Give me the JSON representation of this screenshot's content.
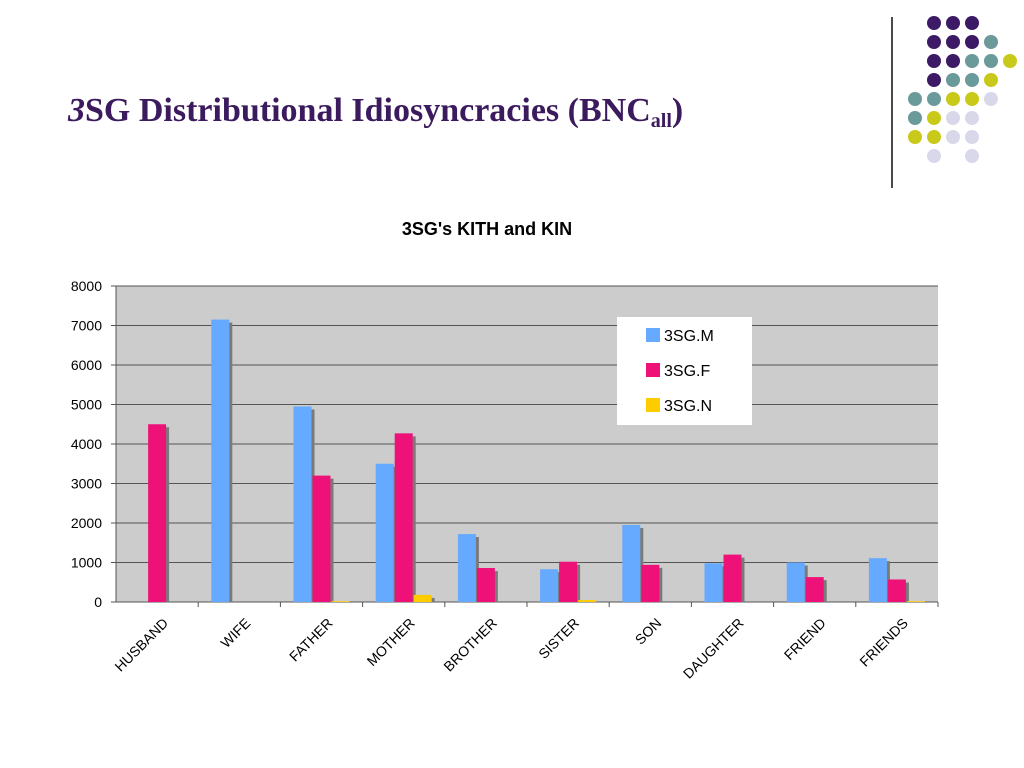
{
  "slide": {
    "title_italic": "3",
    "title_main": "SG Distributional Idiosyncracies (BNC",
    "title_sub": "all",
    "title_close": ")"
  },
  "decor": {
    "dot_palette": {
      "purple": "#3d1a66",
      "teal": "#6b9a9a",
      "olive": "#c9c91a",
      "lavender": "#d8d8ea"
    },
    "dot_rows": [
      [
        "",
        "purple",
        "purple",
        "purple",
        ""
      ],
      [
        "",
        "purple",
        "purple",
        "purple",
        "teal"
      ],
      [
        "",
        "purple",
        "purple",
        "teal",
        "teal",
        "olive"
      ],
      [
        "",
        "purple",
        "teal",
        "teal",
        "olive"
      ],
      [
        "teal",
        "teal",
        "olive",
        "olive",
        "lavender"
      ],
      [
        "teal",
        "olive",
        "lavender",
        "lavender"
      ],
      [
        "olive",
        "olive",
        "lavender",
        "lavender"
      ],
      [
        "",
        "lavender",
        "",
        "lavender"
      ]
    ]
  },
  "chart_data": {
    "type": "bar",
    "title": "3SG's KITH and KIN",
    "categories": [
      "HUSBAND",
      "WIFE",
      "FATHER",
      "MOTHER",
      "BROTHER",
      "SISTER",
      "SON",
      "DAUGHTER",
      "FRIEND",
      "FRIENDS"
    ],
    "series": [
      {
        "name": "3SG.M",
        "color": "#66aaff",
        "values": [
          0,
          7150,
          4950,
          3500,
          1720,
          830,
          1950,
          980,
          1000,
          1110
        ]
      },
      {
        "name": "3SG.F",
        "color": "#ee1177",
        "values": [
          4500,
          0,
          3200,
          4270,
          860,
          1020,
          940,
          1200,
          630,
          570
        ]
      },
      {
        "name": "3SG.N",
        "color": "#ffcc00",
        "values": [
          0,
          0,
          20,
          180,
          0,
          50,
          0,
          0,
          0,
          20
        ]
      }
    ],
    "ylim": [
      0,
      8000
    ],
    "yticks": [
      0,
      1000,
      2000,
      3000,
      4000,
      5000,
      6000,
      7000,
      8000
    ],
    "plot_background": "#cccccc",
    "grid": true,
    "legend_position": "top-right",
    "xlabel": "",
    "ylabel": ""
  }
}
